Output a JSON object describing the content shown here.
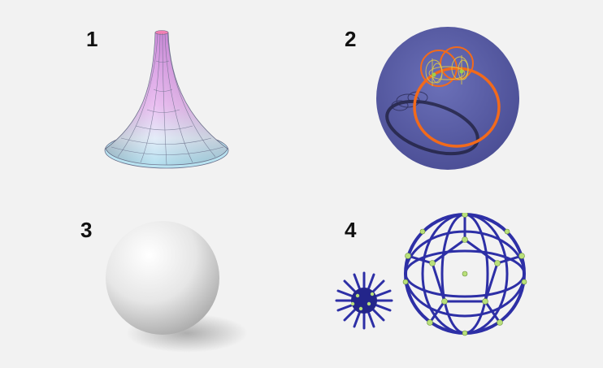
{
  "panels": [
    {
      "number": "1",
      "depicts": "pseudosphere-icon"
    },
    {
      "number": "2",
      "depicts": "hopf-fibration-icon"
    },
    {
      "number": "3",
      "depicts": "sphere-icon"
    },
    {
      "number": "4",
      "depicts": "hoberman-sphere-icon"
    }
  ],
  "colors": {
    "background": "#f2f2f2",
    "number_text": "#111111",
    "disc": "#5b5fa8",
    "orange_ring": "#f26a1b",
    "yellow_fiber": "#d9c24a",
    "toy_blue": "#2d2fa6",
    "toy_joint": "#b9e07a"
  }
}
